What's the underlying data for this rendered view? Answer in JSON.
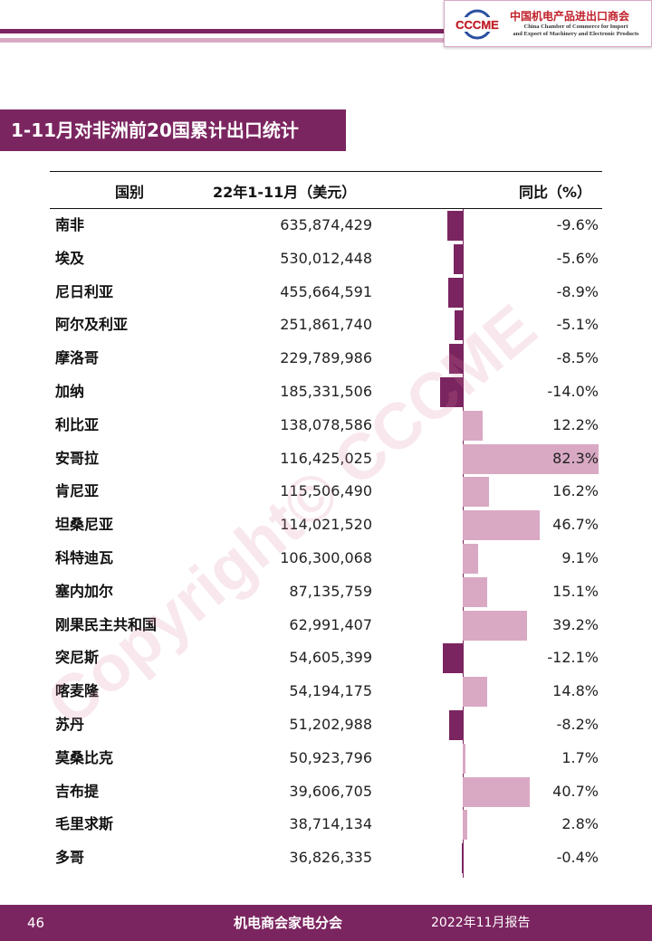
{
  "header": {
    "logo": {
      "mark_text": "CCCME",
      "name_cn": "中国机电产品进出口商会",
      "name_en_line1": "China Chamber of Commerce for Import",
      "name_en_line2": "and Export of Machinery and Electronic Products"
    },
    "colors": {
      "primary": "#7b2560",
      "secondary": "#d9a9c4",
      "logo_red": "#c0202a"
    }
  },
  "section_title": "1-11月对非洲前20国累计出口统计",
  "watermark": "Copyright© CCCME",
  "table": {
    "headers": {
      "country": "国别",
      "value": "22年1-11月（美元）",
      "yoy": "同比（%）"
    },
    "rows": [
      {
        "country": "南非",
        "value": "635,874,429",
        "yoy_text": "-9.6%",
        "yoy": -9.6
      },
      {
        "country": "埃及",
        "value": "530,012,448",
        "yoy_text": "-5.6%",
        "yoy": -5.6
      },
      {
        "country": "尼日利亚",
        "value": "455,664,591",
        "yoy_text": "-8.9%",
        "yoy": -8.9
      },
      {
        "country": "阿尔及利亚",
        "value": "251,861,740",
        "yoy_text": "-5.1%",
        "yoy": -5.1
      },
      {
        "country": "摩洛哥",
        "value": "229,789,986",
        "yoy_text": "-8.5%",
        "yoy": -8.5
      },
      {
        "country": "加纳",
        "value": "185,331,506",
        "yoy_text": "-14.0%",
        "yoy": -14.0
      },
      {
        "country": "利比亚",
        "value": "138,078,586",
        "yoy_text": "12.2%",
        "yoy": 12.2
      },
      {
        "country": "安哥拉",
        "value": "116,425,025",
        "yoy_text": "82.3%",
        "yoy": 82.3
      },
      {
        "country": "肯尼亚",
        "value": "115,506,490",
        "yoy_text": "16.2%",
        "yoy": 16.2
      },
      {
        "country": "坦桑尼亚",
        "value": "114,021,520",
        "yoy_text": "46.7%",
        "yoy": 46.7
      },
      {
        "country": "科特迪瓦",
        "value": "106,300,068",
        "yoy_text": "9.1%",
        "yoy": 9.1
      },
      {
        "country": "塞内加尔",
        "value": "87,135,759",
        "yoy_text": "15.1%",
        "yoy": 15.1
      },
      {
        "country": "刚果民主共和国",
        "value": "62,991,407",
        "yoy_text": "39.2%",
        "yoy": 39.2
      },
      {
        "country": "突尼斯",
        "value": "54,605,399",
        "yoy_text": "-12.1%",
        "yoy": -12.1
      },
      {
        "country": "喀麦隆",
        "value": "54,194,175",
        "yoy_text": "14.8%",
        "yoy": 14.8
      },
      {
        "country": "苏丹",
        "value": "51,202,988",
        "yoy_text": "-8.2%",
        "yoy": -8.2
      },
      {
        "country": "莫桑比克",
        "value": "50,923,796",
        "yoy_text": "1.7%",
        "yoy": 1.7
      },
      {
        "country": "吉布提",
        "value": "39,606,705",
        "yoy_text": "40.7%",
        "yoy": 40.7
      },
      {
        "country": "毛里求斯",
        "value": "38,714,134",
        "yoy_text": "2.8%",
        "yoy": 2.8
      },
      {
        "country": "多哥",
        "value": "36,826,335",
        "yoy_text": "-0.4%",
        "yoy": -0.4
      }
    ]
  },
  "footer": {
    "page_number": "46",
    "center_text": "机电商会家电分会",
    "right_text": "2022年11月报告"
  }
}
